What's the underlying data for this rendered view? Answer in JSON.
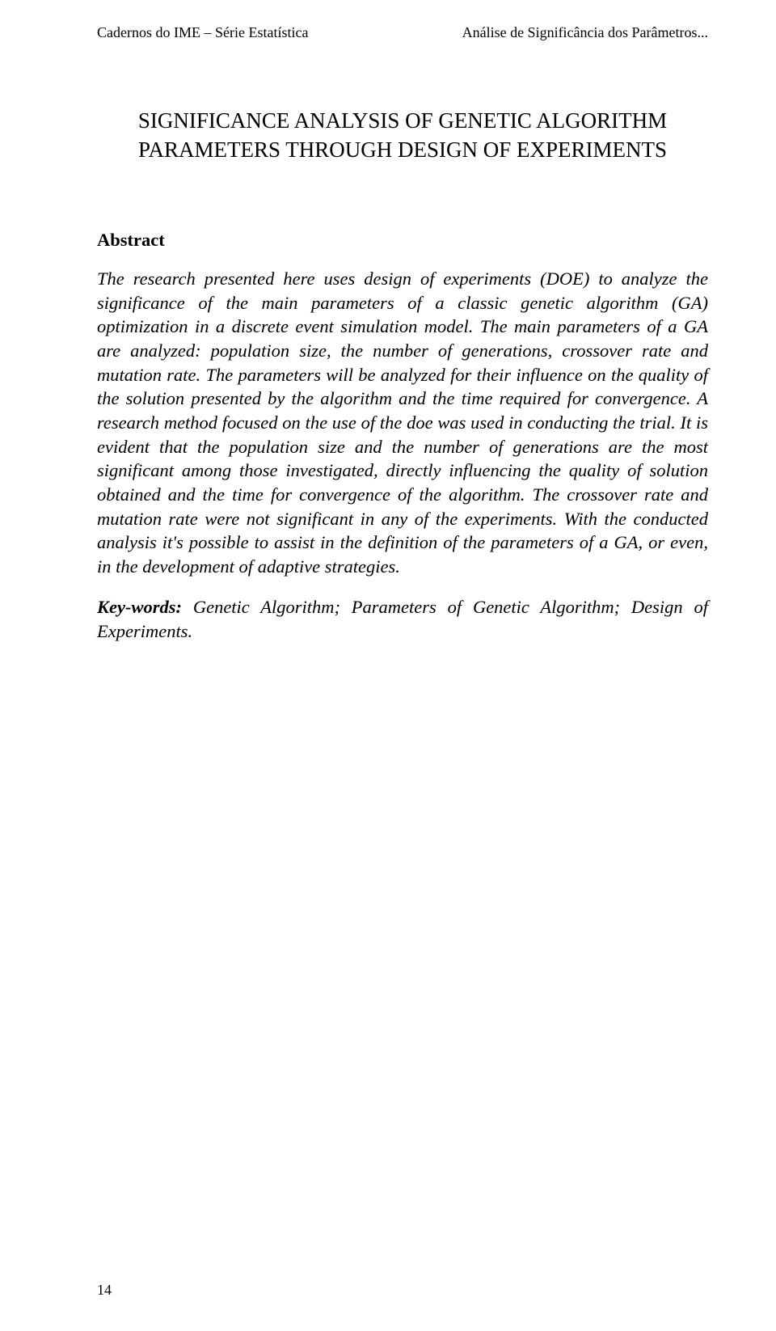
{
  "header": {
    "left": "Cadernos do IME – Série Estatística",
    "right": "Análise de Significância dos Parâmetros..."
  },
  "title": "SIGNIFICANCE ANALYSIS OF GENETIC ALGORITHM PARAMETERS THROUGH DESIGN OF EXPERIMENTS",
  "abstract": {
    "heading": "Abstract",
    "body": "The research presented here uses design of experiments (DOE) to analyze the significance of the main parameters of a classic genetic algorithm (GA) optimization in a discrete event simulation model. The main parameters of a GA are analyzed: population size, the number of generations, crossover rate and mutation rate. The parameters will be analyzed for their influence on the quality of the solution presented by the algorithm and the time required for convergence. A research method focused on the use of the doe was used in conducting the trial. It is evident that the population size and the number of generations are the most significant among those investigated, directly influencing the quality of solution obtained and the time for convergence of the algorithm. The crossover rate and mutation rate were not significant in any of the experiments. With the conducted analysis it's possible to assist in the definition of the parameters of a GA, or even, in the development of adaptive strategies."
  },
  "keywords": {
    "label": "Key-words:",
    "text": " Genetic Algorithm; Parameters of Genetic Algorithm; Design of Experiments."
  },
  "page_number": "14"
}
